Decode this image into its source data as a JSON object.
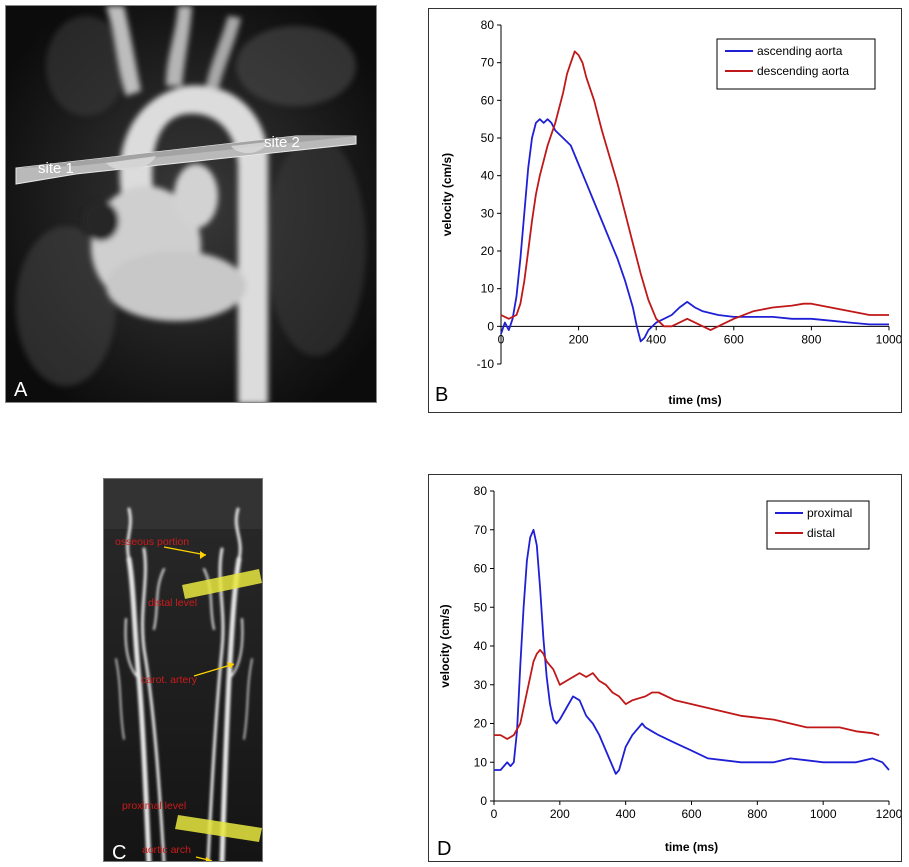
{
  "panels": {
    "a": {
      "letter": "A",
      "site1": "site 1",
      "site2": "site 2"
    },
    "c": {
      "letter": "C",
      "labels": {
        "osseous": "osseous portion",
        "distal": "distal level",
        "carotid": "carot. artery",
        "proximal": "proximal level",
        "arch": "aortic arch"
      }
    },
    "b": {
      "letter": "B"
    },
    "d": {
      "letter": "D"
    }
  },
  "chart_data": [
    {
      "id": "B",
      "type": "line",
      "xlabel": "time (ms)",
      "ylabel": "velocity (cm/s)",
      "xlim": [
        0,
        1000
      ],
      "ylim": [
        -10,
        80
      ],
      "xticks": [
        0,
        200,
        400,
        600,
        800,
        1000
      ],
      "yticks": [
        -10,
        0,
        10,
        20,
        30,
        40,
        50,
        60,
        70,
        80
      ],
      "grid": false,
      "legend": "top-right",
      "series": [
        {
          "name": "ascending aorta",
          "color": "#1f1fd6",
          "x": [
            0,
            10,
            20,
            30,
            40,
            50,
            60,
            70,
            80,
            90,
            100,
            110,
            120,
            130,
            140,
            160,
            180,
            200,
            220,
            240,
            260,
            280,
            300,
            320,
            340,
            350,
            360,
            370,
            380,
            400,
            420,
            440,
            460,
            480,
            500,
            520,
            540,
            560,
            600,
            650,
            700,
            750,
            800,
            850,
            900,
            950,
            1000
          ],
          "y": [
            -2,
            1,
            -1,
            2,
            8,
            18,
            30,
            42,
            50,
            54,
            55,
            54,
            55,
            54,
            52,
            50,
            48,
            43,
            38,
            33,
            28,
            23,
            18,
            12,
            5,
            0,
            -4,
            -3,
            -1,
            1,
            2,
            3,
            5,
            6.5,
            5,
            4,
            3.5,
            3,
            2.5,
            2.5,
            2.5,
            2,
            2,
            1.5,
            1,
            0.5,
            0.5
          ]
        },
        {
          "name": "descending aorta",
          "color": "#c01818",
          "x": [
            0,
            20,
            40,
            50,
            60,
            70,
            80,
            90,
            100,
            110,
            120,
            140,
            160,
            170,
            180,
            190,
            200,
            210,
            220,
            240,
            260,
            280,
            300,
            320,
            340,
            360,
            380,
            400,
            420,
            440,
            460,
            480,
            500,
            520,
            540,
            560,
            580,
            600,
            650,
            700,
            750,
            780,
            800,
            850,
            900,
            950,
            1000
          ],
          "y": [
            3,
            2,
            3,
            6,
            12,
            20,
            28,
            35,
            40,
            44,
            48,
            54,
            62,
            67,
            70,
            73,
            72,
            70,
            66,
            60,
            52,
            45,
            38,
            30,
            22,
            14,
            7,
            2,
            0,
            0,
            1,
            2,
            1,
            0,
            -1,
            0,
            1,
            2,
            4,
            5,
            5.5,
            6,
            6,
            5,
            4,
            3,
            3
          ]
        }
      ]
    },
    {
      "id": "D",
      "type": "line",
      "xlabel": "time (ms)",
      "ylabel": "velocity (cm/s)",
      "xlim": [
        0,
        1200
      ],
      "ylim": [
        0,
        80
      ],
      "xticks": [
        0,
        200,
        400,
        600,
        800,
        1000,
        1200
      ],
      "yticks": [
        0,
        10,
        20,
        30,
        40,
        50,
        60,
        70,
        80
      ],
      "grid": false,
      "legend": "top-right",
      "series": [
        {
          "name": "proximal",
          "color": "#1f1fd6",
          "x": [
            0,
            20,
            40,
            50,
            60,
            70,
            80,
            90,
            100,
            110,
            120,
            130,
            140,
            150,
            160,
            170,
            180,
            190,
            200,
            220,
            240,
            260,
            280,
            300,
            320,
            340,
            360,
            370,
            380,
            390,
            400,
            420,
            440,
            450,
            460,
            480,
            500,
            550,
            600,
            650,
            700,
            750,
            800,
            850,
            900,
            950,
            1000,
            1050,
            1100,
            1150,
            1180,
            1200
          ],
          "y": [
            8,
            8,
            10,
            9,
            10,
            18,
            35,
            50,
            62,
            68,
            70,
            66,
            55,
            42,
            32,
            25,
            21,
            20,
            21,
            24,
            27,
            26,
            22,
            20,
            17,
            13,
            9,
            7,
            8,
            11,
            14,
            17,
            19,
            20,
            19,
            18,
            17,
            15,
            13,
            11,
            10.5,
            10,
            10,
            10,
            11,
            10.5,
            10,
            10,
            10,
            11,
            10,
            8
          ]
        },
        {
          "name": "distal",
          "color": "#c01818",
          "x": [
            0,
            20,
            40,
            60,
            80,
            90,
            100,
            110,
            120,
            130,
            140,
            150,
            160,
            170,
            180,
            200,
            220,
            240,
            260,
            280,
            300,
            320,
            340,
            360,
            380,
            400,
            420,
            440,
            460,
            480,
            500,
            550,
            600,
            650,
            700,
            750,
            800,
            850,
            900,
            950,
            1000,
            1050,
            1100,
            1150,
            1170
          ],
          "y": [
            17,
            17,
            16,
            17,
            20,
            24,
            28,
            32,
            36,
            38,
            39,
            38,
            36,
            35,
            34,
            30,
            31,
            32,
            33,
            32,
            33,
            31,
            30,
            28,
            27,
            25,
            26,
            26.5,
            27,
            28,
            28,
            26,
            25,
            24,
            23,
            22,
            21.5,
            21,
            20,
            19,
            19,
            19,
            18,
            17.5,
            17
          ]
        }
      ]
    }
  ]
}
